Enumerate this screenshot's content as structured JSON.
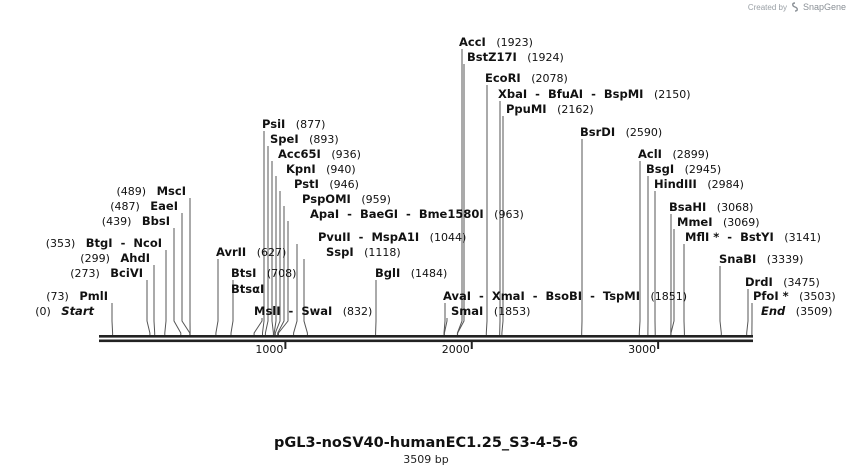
{
  "credit": {
    "created_by": "Created by",
    "brand": "SnapGene"
  },
  "map": {
    "name": "pGL3-noSV40-humanEC1.25_S3-4-5-6",
    "length_label": "3509 bp",
    "total_bp": 3509
  },
  "axis": {
    "ticks": [
      1000,
      2000,
      3000
    ]
  },
  "sites": [
    {
      "parts": [
        "AccI"
      ],
      "pos": "(1923)",
      "loc": 1923
    },
    {
      "parts": [
        "BstZ17I"
      ],
      "pos": "(1924)",
      "loc": 1924
    },
    {
      "parts": [
        "EcoRI"
      ],
      "pos": "(2078)",
      "loc": 2078
    },
    {
      "parts": [
        "XbaI",
        "BfuAI",
        "BspMI"
      ],
      "pos": "(2150)",
      "loc": 2150
    },
    {
      "parts": [
        "PpuMI"
      ],
      "pos": "(2162)",
      "loc": 2162
    },
    {
      "parts": [
        "PsiI"
      ],
      "pos": "(877)",
      "loc": 877
    },
    {
      "parts": [
        "BsrDI"
      ],
      "pos": "(2590)",
      "loc": 2590
    },
    {
      "parts": [
        "SpeI"
      ],
      "pos": "(893)",
      "loc": 893
    },
    {
      "parts": [
        "Acc65I"
      ],
      "pos": "(936)",
      "loc": 936
    },
    {
      "parts": [
        "AclI"
      ],
      "pos": "(2899)",
      "loc": 2899
    },
    {
      "parts": [
        "KpnI"
      ],
      "pos": "(940)",
      "loc": 940
    },
    {
      "parts": [
        "BsgI"
      ],
      "pos": "(2945)",
      "loc": 2945
    },
    {
      "parts": [
        "PstI"
      ],
      "pos": "(946)",
      "loc": 946
    },
    {
      "parts": [
        "HindIII"
      ],
      "pos": "(2984)",
      "loc": 2984
    },
    {
      "parts": [
        "MscI"
      ],
      "pos": "(489)",
      "loc": 489
    },
    {
      "parts": [
        "PspOMI"
      ],
      "pos": "(959)",
      "loc": 959
    },
    {
      "parts": [
        "EaeI"
      ],
      "pos": "(487)",
      "loc": 487
    },
    {
      "parts": [
        "BsaHI"
      ],
      "pos": "(3068)",
      "loc": 3068
    },
    {
      "parts": [
        "ApaI",
        "BaeGI",
        "Bme1580I"
      ],
      "pos": "(963)",
      "loc": 963
    },
    {
      "parts": [
        "BbsI"
      ],
      "pos": "(439)",
      "loc": 439
    },
    {
      "parts": [
        "MmeI"
      ],
      "pos": "(3069)",
      "loc": 3069
    },
    {
      "parts": [
        "PvuII",
        "MspA1I"
      ],
      "pos": "(1044)",
      "loc": 1044
    },
    {
      "parts": [
        "BtgI",
        "NcoI"
      ],
      "pos": "(353)",
      "loc": 353
    },
    {
      "parts": [
        "MflI *",
        "BstYI"
      ],
      "pos": "(3141)",
      "loc": 3141
    },
    {
      "parts": [
        "AvrII"
      ],
      "pos": "(627)",
      "loc": 627
    },
    {
      "parts": [
        "SspI"
      ],
      "pos": "(1118)",
      "loc": 1118
    },
    {
      "parts": [
        "AhdI"
      ],
      "pos": "(299)",
      "loc": 299
    },
    {
      "parts": [
        "SnaBI"
      ],
      "pos": "(3339)",
      "loc": 3339
    },
    {
      "parts": [
        "BciVI"
      ],
      "pos": "(273)",
      "loc": 273
    },
    {
      "parts": [
        "BtsI"
      ],
      "pos": "(708)",
      "loc": 708
    },
    {
      "parts": [
        "BglI"
      ],
      "pos": "(1484)",
      "loc": 1484
    },
    {
      "parts": [
        "DrdI"
      ],
      "pos": "(3475)",
      "loc": 3475
    },
    {
      "parts": [
        "BtsαI"
      ],
      "pos": "",
      "loc": 708
    },
    {
      "parts": [
        "PmlI"
      ],
      "pos": "(73)",
      "loc": 73
    },
    {
      "parts": [
        "AvaI",
        "XmaI",
        "BsoBI",
        "TspMI"
      ],
      "pos": "(1851)",
      "loc": 1851
    },
    {
      "parts": [
        "PfoI *"
      ],
      "pos": "(3503)",
      "loc": 3503
    },
    {
      "parts": [
        "Start"
      ],
      "pos": "(0)",
      "loc": 0,
      "italic": true
    },
    {
      "parts": [
        "MslI",
        "SwaI"
      ],
      "pos": "(832)",
      "loc": 832
    },
    {
      "parts": [
        "SmaI"
      ],
      "pos": "(1853)",
      "loc": 1853
    },
    {
      "parts": [
        "End"
      ],
      "pos": "(3509)",
      "loc": 3509,
      "italic": true
    }
  ]
}
